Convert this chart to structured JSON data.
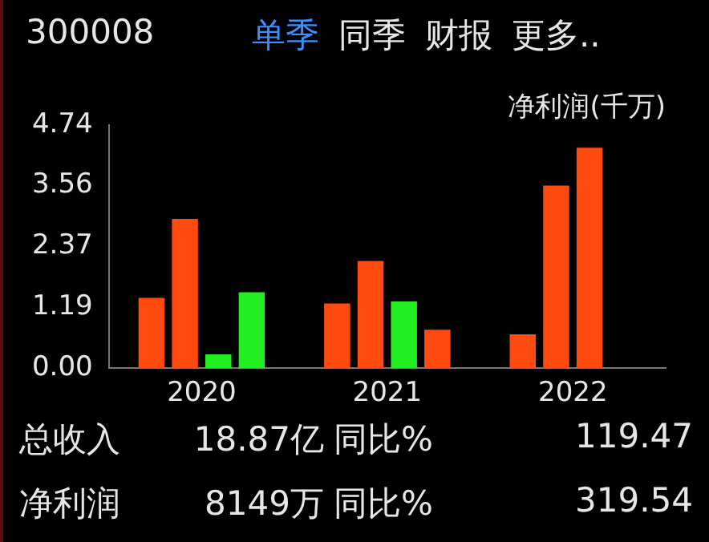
{
  "chart_data": {
    "type": "bar",
    "title": "300008",
    "ylabel": "净利润(千万)",
    "categories": [
      "2020",
      "2021",
      "2022"
    ],
    "series": [
      {
        "values": [
          1.37,
          1.26,
          0.66
        ],
        "colors": [
          "#ff4a10",
          "#ff4a10",
          "#ff4a10"
        ]
      },
      {
        "values": [
          2.91,
          2.09,
          3.56
        ],
        "colors": [
          "#ff4a10",
          "#ff4a10",
          "#ff4a10"
        ]
      },
      {
        "values": [
          0.27,
          1.3,
          4.3
        ],
        "colors": [
          "#22ee22",
          "#22ee22",
          "#ff4a10"
        ]
      },
      {
        "values": [
          1.48,
          0.75,
          null
        ],
        "colors": [
          "#22ee22",
          "#ff4a10",
          "#ff4a10"
        ]
      }
    ],
    "ylim": [
      0,
      4.74
    ],
    "yticks": [
      {
        "value": 0,
        "label": "0.00"
      },
      1.19,
      2.37,
      3.56,
      4.74
    ],
    "grid": false,
    "legend": false,
    "annotations": [
      "单季",
      "同季",
      "财报",
      "更多..",
      "总收入",
      "18.87亿",
      "同比%",
      "119.47",
      "净利润",
      "8149万",
      "同比%",
      "319.54"
    ]
  }
}
